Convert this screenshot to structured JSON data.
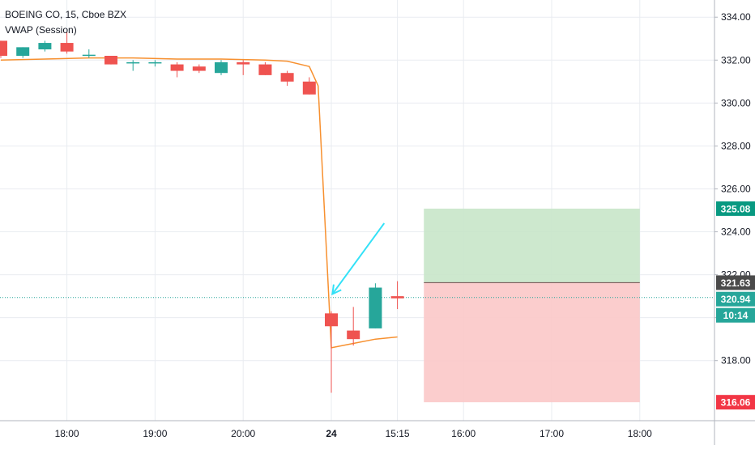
{
  "legend": {
    "symbol_line": "BOEING CO, 15, Cboe BZX",
    "indicator_line": "VWAP (Session)"
  },
  "colors": {
    "up": "#26a69a",
    "down": "#ef5350",
    "vwap": "#f7902f",
    "grid": "#e9ecf1",
    "axis_text": "#131722",
    "arrow": "#33e1f7",
    "profit_zone": "#c8e6c9",
    "loss_zone": "#fbc8c8",
    "price_line": "#26a69a",
    "target_tag": "#089981",
    "stop_tag": "#f23645",
    "entry_tag": "#4a4a4a"
  },
  "chart_data": {
    "type": "candlestick",
    "title": "",
    "x_ticks": [
      {
        "label": "18:00",
        "bar": 3
      },
      {
        "label": "19:00",
        "bar": 7
      },
      {
        "label": "20:00",
        "bar": 11
      },
      {
        "label": "24",
        "bar": 15,
        "bold": true
      },
      {
        "label": "15:15",
        "bar": 18
      },
      {
        "label": "16:00",
        "bar": 21
      },
      {
        "label": "17:00",
        "bar": 25
      },
      {
        "label": "18:00",
        "bar": 29
      }
    ],
    "y_ticks": [
      318.0,
      320.0,
      322.0,
      324.0,
      326.0,
      328.0,
      330.0,
      332.0,
      334.0
    ],
    "ylim": [
      315.2,
      334.8
    ],
    "candles": [
      {
        "bar": 0,
        "o": 332.9,
        "h": 332.9,
        "l": 332.1,
        "c": 332.2
      },
      {
        "bar": 1,
        "o": 332.2,
        "h": 332.6,
        "l": 332.1,
        "c": 332.6
      },
      {
        "bar": 2,
        "o": 332.5,
        "h": 332.9,
        "l": 332.4,
        "c": 332.8
      },
      {
        "bar": 3,
        "o": 332.8,
        "h": 333.3,
        "l": 332.3,
        "c": 332.4
      },
      {
        "bar": 4,
        "o": 332.2,
        "h": 332.5,
        "l": 332.1,
        "c": 332.25
      },
      {
        "bar": 5,
        "o": 332.2,
        "h": 332.2,
        "l": 331.8,
        "c": 331.8
      },
      {
        "bar": 6,
        "o": 331.85,
        "h": 332.0,
        "l": 331.5,
        "c": 331.9
      },
      {
        "bar": 7,
        "o": 331.9,
        "h": 332.0,
        "l": 331.7,
        "c": 331.9
      },
      {
        "bar": 8,
        "o": 331.8,
        "h": 331.9,
        "l": 331.2,
        "c": 331.5
      },
      {
        "bar": 9,
        "o": 331.7,
        "h": 331.8,
        "l": 331.4,
        "c": 331.5
      },
      {
        "bar": 10,
        "o": 331.4,
        "h": 332.0,
        "l": 331.3,
        "c": 331.9
      },
      {
        "bar": 11,
        "o": 331.9,
        "h": 332.0,
        "l": 331.3,
        "c": 331.8
      },
      {
        "bar": 12,
        "o": 331.8,
        "h": 331.9,
        "l": 331.3,
        "c": 331.3
      },
      {
        "bar": 13,
        "o": 331.4,
        "h": 331.5,
        "l": 330.8,
        "c": 331.0
      },
      {
        "bar": 14,
        "o": 331.0,
        "h": 331.2,
        "l": 330.4,
        "c": 330.4
      },
      {
        "bar": 15,
        "o": 320.2,
        "h": 320.3,
        "l": 316.5,
        "c": 319.6
      },
      {
        "bar": 16,
        "o": 319.4,
        "h": 320.5,
        "l": 318.7,
        "c": 319.0
      },
      {
        "bar": 17,
        "o": 319.5,
        "h": 321.6,
        "l": 319.5,
        "c": 321.4
      },
      {
        "bar": 18,
        "o": 321.0,
        "h": 321.7,
        "l": 320.4,
        "c": 320.9
      }
    ],
    "vwap": [
      {
        "bar": 0,
        "v": 332.0
      },
      {
        "bar": 2,
        "v": 332.05
      },
      {
        "bar": 4,
        "v": 332.1
      },
      {
        "bar": 6,
        "v": 332.1
      },
      {
        "bar": 8,
        "v": 332.05
      },
      {
        "bar": 10,
        "v": 332.05
      },
      {
        "bar": 12,
        "v": 332.0
      },
      {
        "bar": 13,
        "v": 331.95
      },
      {
        "bar": 14,
        "v": 331.7
      },
      {
        "bar": 14.4,
        "v": 330.8
      },
      {
        "bar": 15,
        "v": 318.6
      },
      {
        "bar": 16,
        "v": 318.8
      },
      {
        "bar": 17,
        "v": 319.0
      },
      {
        "bar": 18,
        "v": 319.1
      }
    ],
    "last_price": 320.94,
    "countdown": "10:14",
    "position": {
      "entry": 321.63,
      "target": 325.08,
      "stop": 316.06,
      "bar_start": 19.2,
      "bar_end": 29
    },
    "arrow": {
      "from_bar": 17.4,
      "from_price": 324.4,
      "to_bar": 15.05,
      "to_price": 321.1
    }
  }
}
